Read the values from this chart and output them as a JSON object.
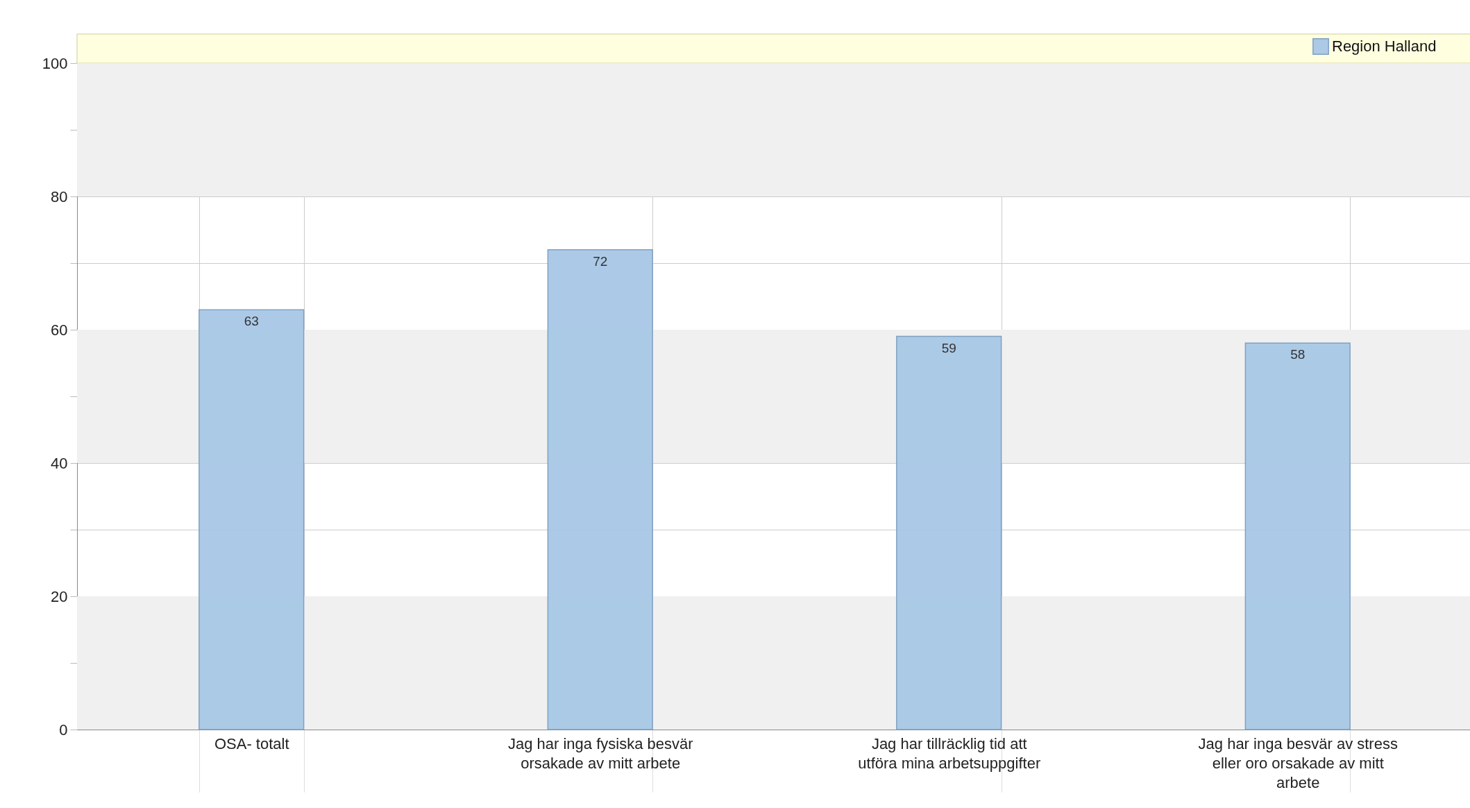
{
  "chart_data": {
    "type": "bar",
    "categories": [
      "OSA- totalt",
      "Jag har inga fysiska besvär orsakade av mitt arbete",
      "Jag har tillräcklig tid att utföra mina arbetsuppgifter",
      "Jag har inga besvär av stress eller oro orsakade av mitt arbete"
    ],
    "series": [
      {
        "name": "Region Halland",
        "color": "#a8c8e6",
        "values": [
          63,
          72,
          59,
          58
        ]
      }
    ],
    "ylim": [
      0,
      100
    ],
    "yticks": [
      0,
      {
        "value": 10,
        "label": null
      },
      20,
      {
        "value": 30,
        "label": null
      },
      40,
      {
        "value": 50,
        "label": null
      },
      60,
      {
        "value": 70,
        "label": null
      },
      80,
      {
        "value": 90,
        "label": null
      },
      100
    ],
    "bands": [
      {
        "axis": "y",
        "from": 0,
        "to": 20,
        "color": "#f0f0f0"
      },
      {
        "axis": "y",
        "from": 40,
        "to": 60,
        "color": "#f0f0f0"
      },
      {
        "axis": "y",
        "from": 80,
        "to": 100,
        "color": "#f0f0f0"
      }
    ],
    "grid": true,
    "legend": "top right",
    "data_labels": true
  }
}
